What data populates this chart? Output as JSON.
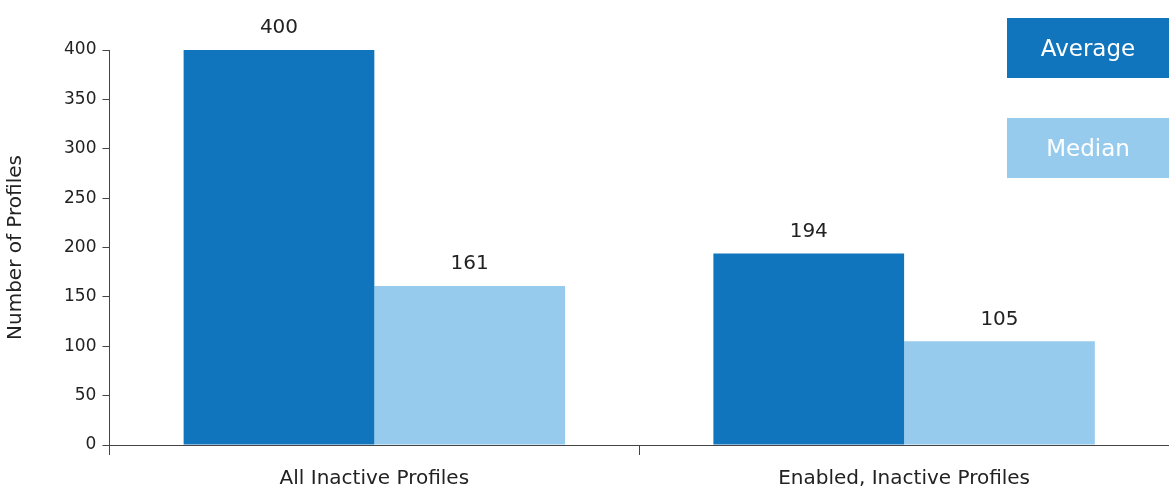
{
  "chart_data": {
    "type": "bar",
    "ylabel": "Number of Profiles",
    "categories": [
      "All Inactive Profiles",
      "Enabled, Inactive Profiles"
    ],
    "series": [
      {
        "name": "Average",
        "color": "#1075bd",
        "values": [
          400,
          194
        ]
      },
      {
        "name": "Median",
        "color": "#97cbee",
        "values": [
          161,
          105
        ]
      }
    ],
    "ylim": [
      0,
      400
    ],
    "yticks": [
      0,
      50,
      100,
      150,
      200,
      250,
      300,
      350,
      400
    ],
    "grid": false,
    "legend": "top right",
    "data_labels": true
  }
}
